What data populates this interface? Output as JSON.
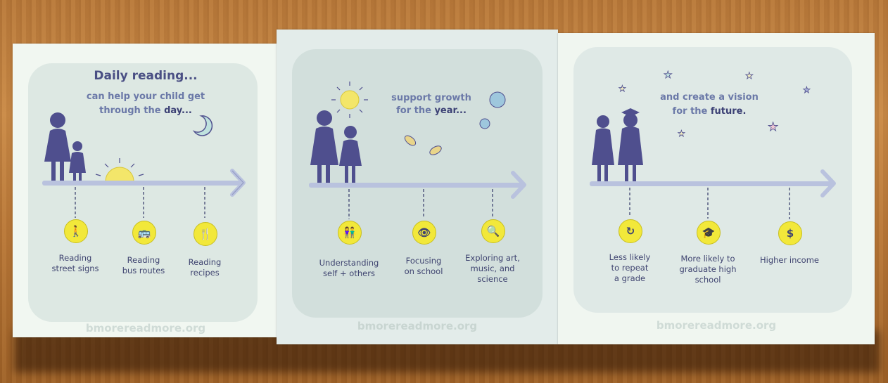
{
  "panel1": {
    "title": "Daily reading...",
    "sub_line1": "can help your child get",
    "sub_line2_pre": "through the ",
    "sub_line2_em": "day...",
    "items": [
      {
        "label": "Reading\nstreet signs",
        "icon": "pedestrian-icon"
      },
      {
        "label": "Reading\nbus routes",
        "icon": "bus-icon"
      },
      {
        "label": "Reading\nrecipes",
        "icon": "fork-knife-icon"
      }
    ],
    "url": "bmorereadmore.org"
  },
  "panel2": {
    "sub_line1": "support growth",
    "sub_line2_pre": "for the ",
    "sub_line2_em": "year...",
    "items": [
      {
        "label": "Understanding\nself + others",
        "icon": "people-icon"
      },
      {
        "label": "Focusing\non school",
        "icon": "eye-icon"
      },
      {
        "label": "Exploring art,\nmusic, and\nscience",
        "icon": "magnifier-icon"
      }
    ],
    "url": "bmorereadmore.org"
  },
  "panel3": {
    "sub_line1": "and create a vision",
    "sub_line2_pre": "for the ",
    "sub_line2_em": "future.",
    "items": [
      {
        "label": "Less likely\nto repeat\na grade",
        "icon": "repeat-arrow-icon"
      },
      {
        "label": "More likely to\ngraduate high\nschool",
        "icon": "graduation-cap-icon"
      },
      {
        "label": "Higher income",
        "icon": "dollar-icon",
        "glyph": "$"
      }
    ],
    "url": "bmorereadmore.org"
  },
  "colors": {
    "figure": "#4f4f8e",
    "timeline": "#b9c2de",
    "badge": "#f2e83a",
    "text": "#4a4f84"
  }
}
